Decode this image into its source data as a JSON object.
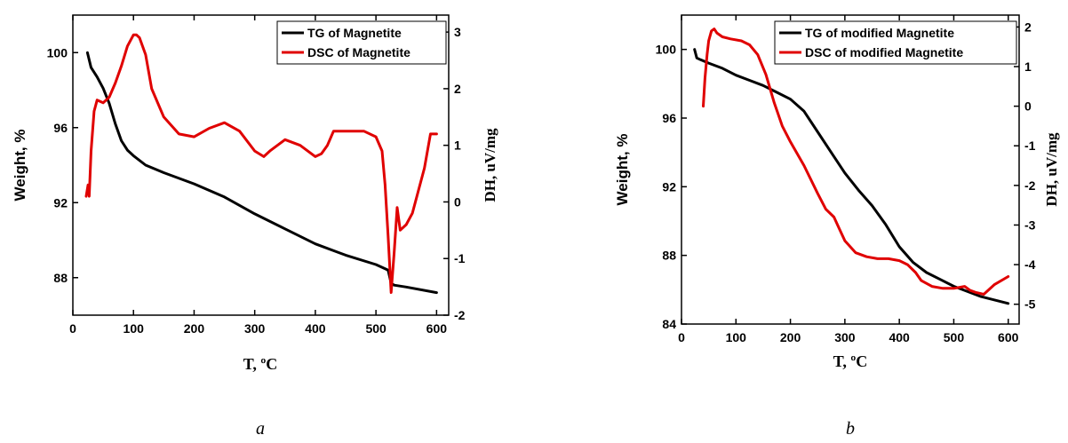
{
  "chart_data": [
    {
      "type": "line",
      "xlabel": "T, ºC",
      "ylabel": "Weight, %",
      "y2label": "DH, uV/mg",
      "xlim": [
        0,
        620
      ],
      "ylim": [
        86,
        102
      ],
      "y2lim": [
        -2,
        3.3
      ],
      "xticks": [
        0,
        100,
        200,
        300,
        400,
        500,
        600
      ],
      "yticks": [
        88,
        92,
        96,
        100
      ],
      "y2ticks": [
        -2,
        -1,
        0,
        1,
        2,
        3
      ],
      "legend_position": "top-right",
      "caption": "a",
      "series": [
        {
          "name": "TG of Magnetite",
          "axis": "left",
          "color": "#000000",
          "x": [
            24,
            30,
            40,
            50,
            60,
            70,
            80,
            90,
            100,
            120,
            150,
            200,
            250,
            300,
            350,
            400,
            450,
            500,
            520,
            525,
            530,
            550,
            600
          ],
          "y": [
            100.0,
            99.2,
            98.7,
            98.1,
            97.3,
            96.2,
            95.3,
            94.8,
            94.5,
            94.0,
            93.6,
            93.0,
            92.3,
            91.4,
            90.6,
            89.8,
            89.2,
            88.7,
            88.4,
            87.7,
            87.6,
            87.5,
            87.2
          ]
        },
        {
          "name": "DSC of Magnetite",
          "axis": "right",
          "color": "#e00000",
          "x": [
            22,
            25,
            27,
            30,
            35,
            40,
            50,
            60,
            70,
            80,
            90,
            100,
            105,
            110,
            120,
            130,
            150,
            175,
            200,
            225,
            250,
            275,
            300,
            315,
            325,
            350,
            375,
            400,
            410,
            420,
            430,
            440,
            450,
            480,
            500,
            510,
            515,
            520,
            525,
            530,
            535,
            540,
            550,
            560,
            570,
            580,
            590,
            600
          ],
          "y": [
            0.1,
            0.3,
            0.1,
            0.9,
            1.6,
            1.8,
            1.75,
            1.85,
            2.1,
            2.4,
            2.75,
            2.95,
            2.95,
            2.9,
            2.6,
            2.0,
            1.5,
            1.2,
            1.15,
            1.3,
            1.4,
            1.25,
            0.9,
            0.8,
            0.9,
            1.1,
            1.0,
            0.8,
            0.85,
            1.0,
            1.25,
            1.25,
            1.25,
            1.25,
            1.15,
            0.9,
            0.3,
            -0.6,
            -1.6,
            -0.9,
            -0.1,
            -0.5,
            -0.4,
            -0.2,
            0.2,
            0.6,
            1.2,
            1.2
          ]
        }
      ]
    },
    {
      "type": "line",
      "xlabel": "T, ºC",
      "ylabel": "Weight, %",
      "y2label": "DH, uV/mg",
      "xlim": [
        0,
        620
      ],
      "ylim": [
        84,
        102
      ],
      "y2lim": [
        -5.5,
        2.3
      ],
      "xticks": [
        0,
        100,
        200,
        300,
        400,
        500,
        600
      ],
      "yticks": [
        84,
        88,
        92,
        96,
        100
      ],
      "y2ticks": [
        -5,
        -4,
        -3,
        -2,
        -1,
        0,
        1,
        2
      ],
      "legend_position": "top-right",
      "caption": "b",
      "series": [
        {
          "name": "TG of modified Magnetite",
          "axis": "left",
          "color": "#000000",
          "x": [
            24,
            28,
            35,
            50,
            75,
            100,
            125,
            150,
            175,
            200,
            225,
            250,
            275,
            300,
            325,
            350,
            375,
            400,
            425,
            450,
            475,
            500,
            550,
            600
          ],
          "y": [
            100.0,
            99.5,
            99.4,
            99.2,
            98.9,
            98.5,
            98.2,
            97.9,
            97.5,
            97.1,
            96.4,
            95.2,
            94.0,
            92.8,
            91.8,
            90.9,
            89.8,
            88.5,
            87.6,
            87.0,
            86.6,
            86.2,
            85.6,
            85.2
          ]
        },
        {
          "name": "DSC of modified Magnetite",
          "axis": "right",
          "color": "#e00000",
          "x": [
            40,
            43,
            47,
            50,
            55,
            60,
            65,
            75,
            90,
            110,
            125,
            140,
            155,
            170,
            185,
            200,
            225,
            250,
            265,
            280,
            290,
            300,
            320,
            340,
            360,
            380,
            400,
            415,
            430,
            440,
            460,
            480,
            500,
            520,
            530,
            540,
            555,
            575,
            600
          ],
          "y": [
            0.0,
            0.7,
            1.3,
            1.65,
            1.9,
            1.95,
            1.85,
            1.75,
            1.7,
            1.65,
            1.55,
            1.3,
            0.8,
            0.1,
            -0.5,
            -0.9,
            -1.5,
            -2.2,
            -2.6,
            -2.8,
            -3.1,
            -3.4,
            -3.7,
            -3.8,
            -3.85,
            -3.85,
            -3.9,
            -4.0,
            -4.2,
            -4.4,
            -4.55,
            -4.6,
            -4.6,
            -4.55,
            -4.65,
            -4.7,
            -4.75,
            -4.5,
            -4.3
          ]
        }
      ]
    }
  ]
}
